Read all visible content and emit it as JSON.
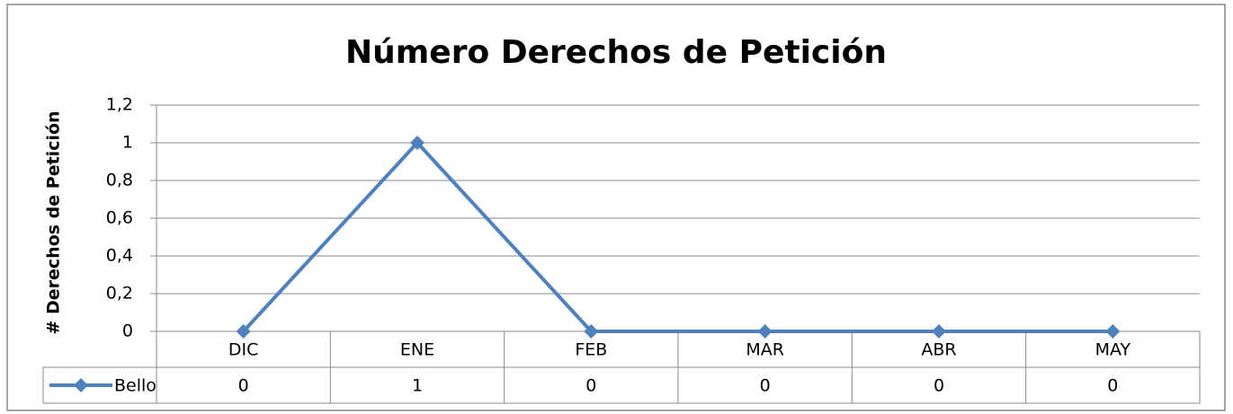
{
  "chart_data": {
    "type": "line",
    "title": "Número Derechos de Petición",
    "y_label": "# Derechos de Petición",
    "categories": [
      "DIC",
      "ENE",
      "FEB",
      "MAR",
      "ABR",
      "MAY"
    ],
    "series": [
      {
        "name": "Bello",
        "color": "#4f81bd",
        "values": [
          0,
          1,
          0,
          0,
          0,
          0
        ]
      }
    ],
    "ylim": [
      0,
      1.2
    ],
    "yticks": [
      0,
      {
        "value": 0.2,
        "label": "0,2"
      },
      {
        "value": 0.4,
        "label": "0,4"
      },
      {
        "value": 0.6,
        "label": "0,6"
      },
      {
        "value": 0.8,
        "label": "0,8"
      },
      1,
      {
        "value": 1.2,
        "label": "1,2"
      }
    ],
    "grid": true,
    "data_table": true
  }
}
